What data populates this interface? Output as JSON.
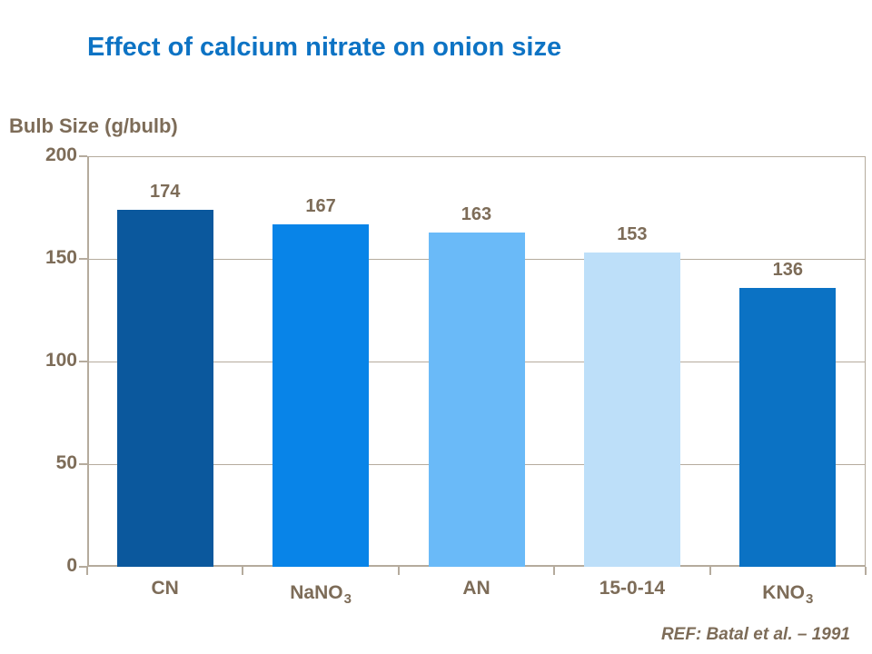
{
  "colors": {
    "background": "#ffffff",
    "title": "#0d73c4",
    "text": "#7d6c58",
    "axis_line": "#b5ab9d"
  },
  "chart_data": {
    "type": "bar",
    "title": "Effect of calcium nitrate on onion size",
    "ylabel": "Bulb Size (g/bulb)",
    "xlabel": "",
    "categories": [
      {
        "label": "CN",
        "subscript": ""
      },
      {
        "label": "NaNO",
        "subscript": "3"
      },
      {
        "label": "AN",
        "subscript": ""
      },
      {
        "label": "15-0-14",
        "subscript": ""
      },
      {
        "label": "KNO",
        "subscript": "3"
      }
    ],
    "values": [
      174,
      167,
      163,
      153,
      136
    ],
    "bar_colors": [
      "#0b589d",
      "#0884e8",
      "#6abaf8",
      "#bddff9",
      "#0b72c4"
    ],
    "ylim": [
      0,
      200
    ],
    "yticks": [
      0,
      50,
      100,
      150,
      200
    ],
    "grid": true,
    "legend": false,
    "data_labels": true,
    "source_note": "REF: Batal et al. – 1991"
  }
}
